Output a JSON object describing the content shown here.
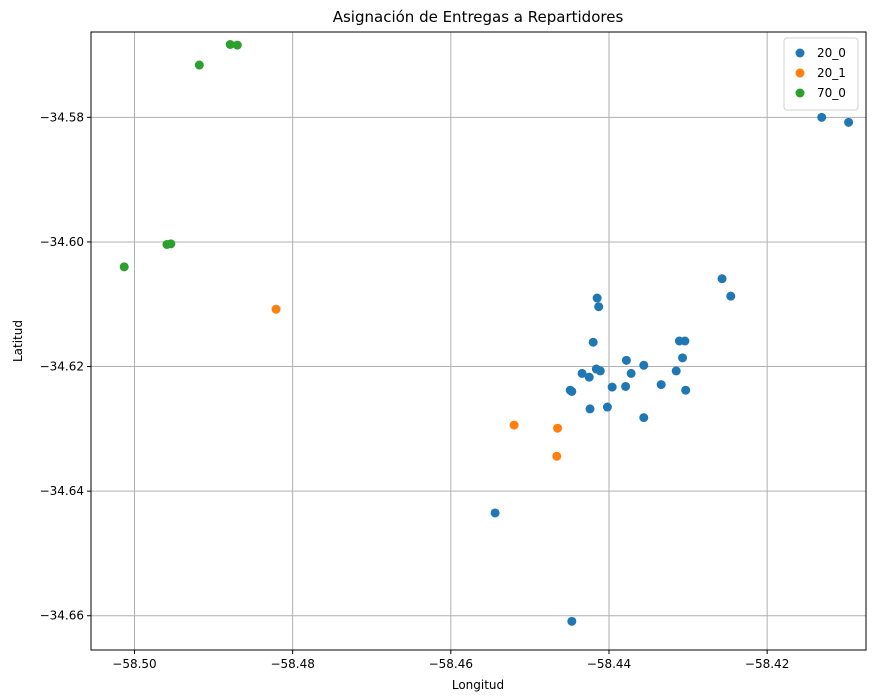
{
  "chart_data": {
    "type": "scatter",
    "title": "Asignación de Entregas a Repartidores",
    "xlabel": "Longitud",
    "ylabel": "Latitud",
    "xlim": [
      -58.5055,
      -58.4075
    ],
    "ylim": [
      -34.6655,
      -34.5663
    ],
    "xticks": [
      -58.5,
      -58.48,
      -58.46,
      -58.44,
      -58.42
    ],
    "xtick_labels": [
      "−58.50",
      "−58.48",
      "−58.46",
      "−58.44",
      "−58.42"
    ],
    "yticks": [
      -34.58,
      -34.6,
      -34.62,
      -34.64,
      -34.66
    ],
    "ytick_labels": [
      "−34.58",
      "−34.60",
      "−34.62",
      "−34.64",
      "−34.66"
    ],
    "grid": true,
    "legend_position": "top-right",
    "series": [
      {
        "name": "20_0",
        "color": "#1f77b4",
        "points": [
          [
            -58.4131,
            -34.58
          ],
          [
            -58.4097,
            -34.5808
          ],
          [
            -58.4257,
            -34.6059
          ],
          [
            -58.4246,
            -34.6087
          ],
          [
            -58.4415,
            -34.609
          ],
          [
            -58.4413,
            -34.6104
          ],
          [
            -58.442,
            -34.6161
          ],
          [
            -58.4311,
            -34.6159
          ],
          [
            -58.4304,
            -34.6159
          ],
          [
            -58.4307,
            -34.6186
          ],
          [
            -58.4378,
            -34.619
          ],
          [
            -58.4356,
            -34.6198
          ],
          [
            -58.4315,
            -34.6207
          ],
          [
            -58.4416,
            -34.6204
          ],
          [
            -58.4411,
            -34.6207
          ],
          [
            -58.4372,
            -34.6211
          ],
          [
            -58.4434,
            -34.6211
          ],
          [
            -58.4425,
            -34.6217
          ],
          [
            -58.4334,
            -34.6229
          ],
          [
            -58.4396,
            -34.6233
          ],
          [
            -58.4379,
            -34.6232
          ],
          [
            -58.4303,
            -34.6238
          ],
          [
            -58.4449,
            -34.6238
          ],
          [
            -58.4447,
            -34.624
          ],
          [
            -58.4402,
            -34.6265
          ],
          [
            -58.4424,
            -34.6268
          ],
          [
            -58.4356,
            -34.6282
          ],
          [
            -58.4544,
            -34.6435
          ],
          [
            -58.4447,
            -34.6609
          ]
        ]
      },
      {
        "name": "20_1",
        "color": "#ff7f0e",
        "points": [
          [
            -58.4821,
            -34.6108
          ],
          [
            -58.452,
            -34.6294
          ],
          [
            -58.4465,
            -34.6299
          ],
          [
            -58.4466,
            -34.6344
          ]
        ]
      },
      {
        "name": "70_0",
        "color": "#2ca02c",
        "points": [
          [
            -58.4879,
            -34.5683
          ],
          [
            -58.487,
            -34.5684
          ],
          [
            -58.4918,
            -34.5716
          ],
          [
            -58.4959,
            -34.6004
          ],
          [
            -58.4954,
            -34.6003
          ],
          [
            -58.5013,
            -34.604
          ]
        ]
      }
    ]
  }
}
